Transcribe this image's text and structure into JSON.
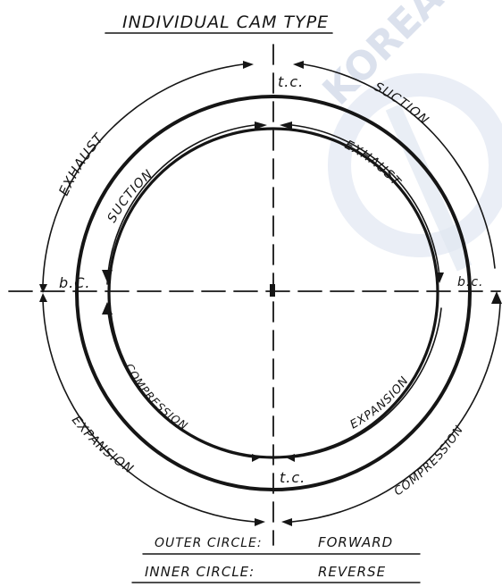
{
  "title": "INDIVIDUAL CAM TYPE",
  "watermark": "KOREA MARI",
  "labels": {
    "tc_top": "t.c.",
    "tc_bottom": "t.c.",
    "bc_left": "b.C.",
    "bc_right": "b.c."
  },
  "outer_circle": {
    "exhaust": "EXHAUST",
    "suction": "SUCTION",
    "compression": "COMPRESSION",
    "expansion": "EXPANSION"
  },
  "inner_circle": {
    "suction": "SUCTION",
    "exhaust": "EXHAUST",
    "expansion": "EXPANSION",
    "compression": "COMPRESSION"
  },
  "legend": {
    "outer_label": "OUTER CIRCLE:",
    "outer_value": "FORWARD",
    "inner_label": "INNER CIRCLE:",
    "inner_value": "REVERSE"
  },
  "colors": {
    "ink": "#151515",
    "watermark": "#cfd8e8"
  }
}
